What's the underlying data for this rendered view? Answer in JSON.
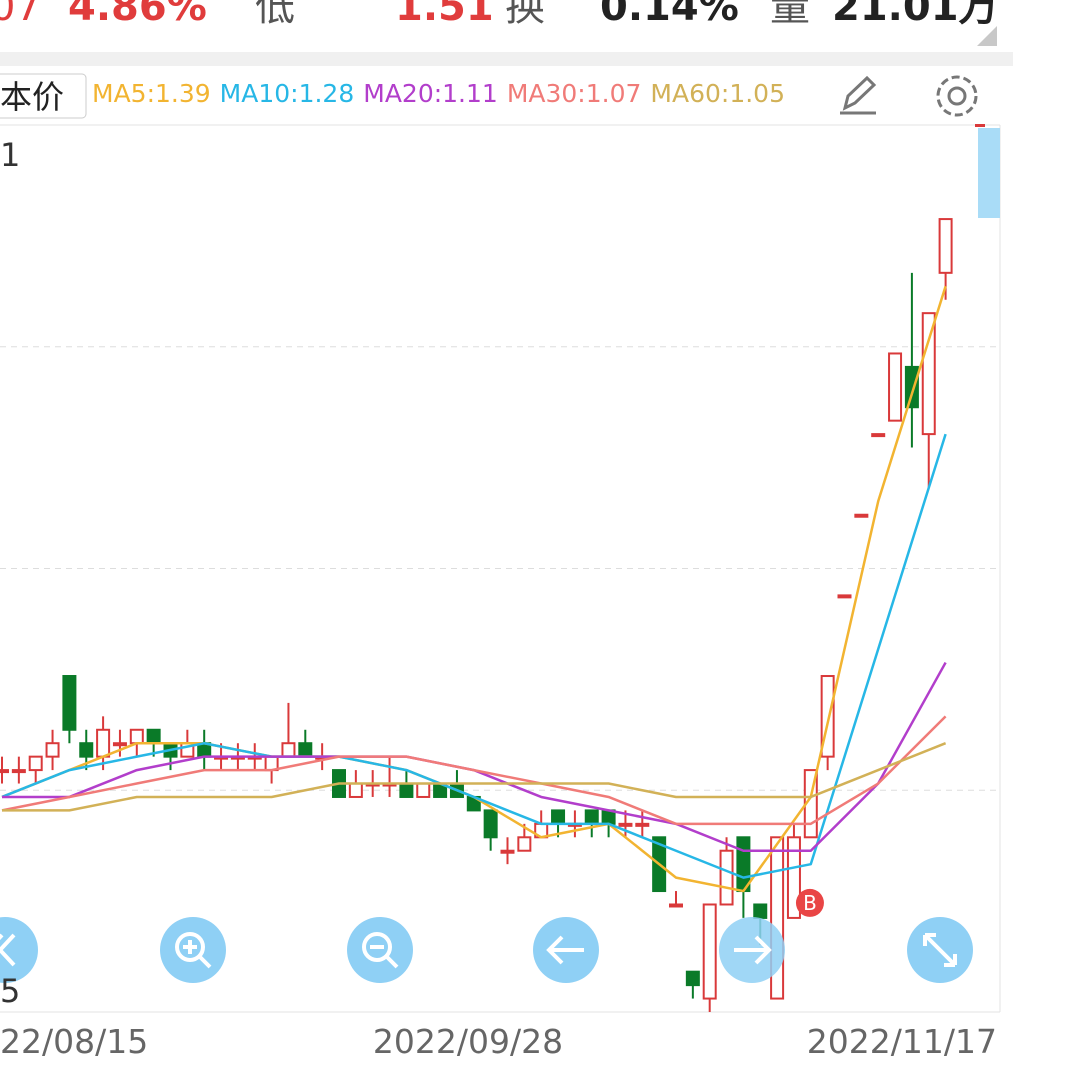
{
  "header": {
    "items": [
      "07",
      "4.86%",
      "低",
      "1.51",
      "换",
      "0.14%",
      "量",
      "21.01万"
    ]
  },
  "toolbar": {
    "price_button": "本价"
  },
  "chart_data": {
    "type": "candlestick",
    "ylim": [
      0.85,
      1.51
    ],
    "axis_labels": [
      "1",
      "5"
    ],
    "date_labels": [
      "22/08/15",
      "2022/09/28",
      "2022/11/17"
    ],
    "open": [
      1.03,
      1.03,
      1.03,
      1.04,
      1.1,
      1.05,
      1.04,
      1.05,
      1.05,
      1.06,
      1.05,
      1.04,
      1.05,
      1.04,
      1.04,
      1.04,
      1.03,
      1.04,
      1.05,
      1.04,
      1.03,
      1.01,
      1.02,
      1.02,
      1.02,
      1.01,
      1.02,
      1.02,
      1.01,
      1.0,
      0.97,
      0.97,
      0.98,
      1.0,
      0.99,
      1.0,
      1.0,
      0.99,
      0.99,
      0.98,
      0.93,
      0.88,
      0.86,
      0.93,
      0.98,
      0.93,
      0.86,
      0.92,
      0.98,
      1.04,
      1.16,
      1.22,
      1.28,
      1.29,
      1.33,
      1.28,
      1.4
    ],
    "close": [
      1.03,
      1.03,
      1.04,
      1.05,
      1.06,
      1.04,
      1.06,
      1.05,
      1.06,
      1.05,
      1.04,
      1.05,
      1.04,
      1.04,
      1.04,
      1.04,
      1.04,
      1.05,
      1.04,
      1.04,
      1.01,
      1.02,
      1.02,
      1.02,
      1.01,
      1.02,
      1.01,
      1.01,
      1.0,
      0.98,
      0.97,
      0.98,
      0.99,
      0.99,
      0.99,
      0.99,
      0.99,
      0.99,
      0.99,
      0.94,
      0.93,
      0.87,
      0.93,
      0.97,
      0.94,
      0.92,
      0.98,
      0.98,
      1.03,
      1.1,
      1.16,
      1.22,
      1.28,
      1.34,
      1.3,
      1.37,
      1.44
    ],
    "high": [
      1.04,
      1.04,
      1.04,
      1.06,
      1.1,
      1.06,
      1.07,
      1.06,
      1.06,
      1.06,
      1.05,
      1.06,
      1.06,
      1.05,
      1.05,
      1.05,
      1.04,
      1.08,
      1.06,
      1.05,
      1.03,
      1.03,
      1.03,
      1.04,
      1.03,
      1.02,
      1.02,
      1.03,
      1.01,
      1.0,
      0.98,
      0.99,
      1.0,
      1.0,
      1.0,
      1.0,
      1.0,
      1.0,
      1.0,
      0.98,
      0.94,
      0.88,
      0.93,
      0.98,
      0.98,
      0.93,
      0.98,
      0.99,
      1.03,
      1.1,
      1.16,
      1.22,
      1.28,
      1.34,
      1.4,
      1.37,
      1.44
    ],
    "low": [
      1.02,
      1.02,
      1.02,
      1.03,
      1.05,
      1.03,
      1.03,
      1.04,
      1.04,
      1.04,
      1.03,
      1.04,
      1.03,
      1.03,
      1.03,
      1.03,
      1.02,
      1.04,
      1.04,
      1.03,
      1.01,
      1.01,
      1.01,
      1.01,
      1.01,
      1.01,
      1.01,
      1.01,
      1.0,
      0.97,
      0.96,
      0.97,
      0.98,
      0.98,
      0.98,
      0.98,
      0.98,
      0.98,
      0.98,
      0.94,
      0.93,
      0.86,
      0.85,
      0.93,
      0.92,
      0.9,
      0.86,
      0.92,
      0.98,
      1.03,
      1.16,
      1.22,
      1.28,
      1.29,
      1.27,
      1.24,
      1.38
    ],
    "up_color": "#d9393a",
    "down_color": "#0a7a28",
    "marker": {
      "text": "B",
      "index": 47
    },
    "ma_x": [
      0,
      4,
      8,
      12,
      16,
      20,
      24,
      28,
      32,
      36,
      40,
      44,
      48,
      52,
      56
    ],
    "series": [
      {
        "legend": "MA5:1.39",
        "color": "#f2b431",
        "values": [
          1.01,
          1.03,
          1.05,
          1.05,
          1.04,
          1.04,
          1.03,
          1.01,
          0.98,
          0.99,
          0.95,
          0.94,
          1.01,
          1.23,
          1.39
        ]
      },
      {
        "legend": "MA10:1.28",
        "color": "#27b7e6",
        "values": [
          1.01,
          1.03,
          1.04,
          1.05,
          1.04,
          1.04,
          1.03,
          1.01,
          0.99,
          0.99,
          0.97,
          0.95,
          0.96,
          1.12,
          1.28
        ]
      },
      {
        "legend": "MA20:1.11",
        "color": "#b23ecb",
        "values": [
          1.01,
          1.01,
          1.03,
          1.04,
          1.04,
          1.04,
          1.04,
          1.03,
          1.01,
          1.0,
          0.99,
          0.97,
          0.97,
          1.02,
          1.11
        ]
      },
      {
        "legend": "MA30:1.07",
        "color": "#f07b78",
        "values": [
          1.0,
          1.01,
          1.02,
          1.03,
          1.03,
          1.04,
          1.04,
          1.03,
          1.02,
          1.01,
          0.99,
          0.99,
          0.99,
          1.02,
          1.07
        ]
      },
      {
        "legend": "MA60:1.05",
        "color": "#d2b157",
        "values": [
          1.0,
          1.0,
          1.01,
          1.01,
          1.01,
          1.02,
          1.02,
          1.02,
          1.02,
          1.02,
          1.01,
          1.01,
          1.01,
          1.03,
          1.05
        ]
      }
    ]
  }
}
